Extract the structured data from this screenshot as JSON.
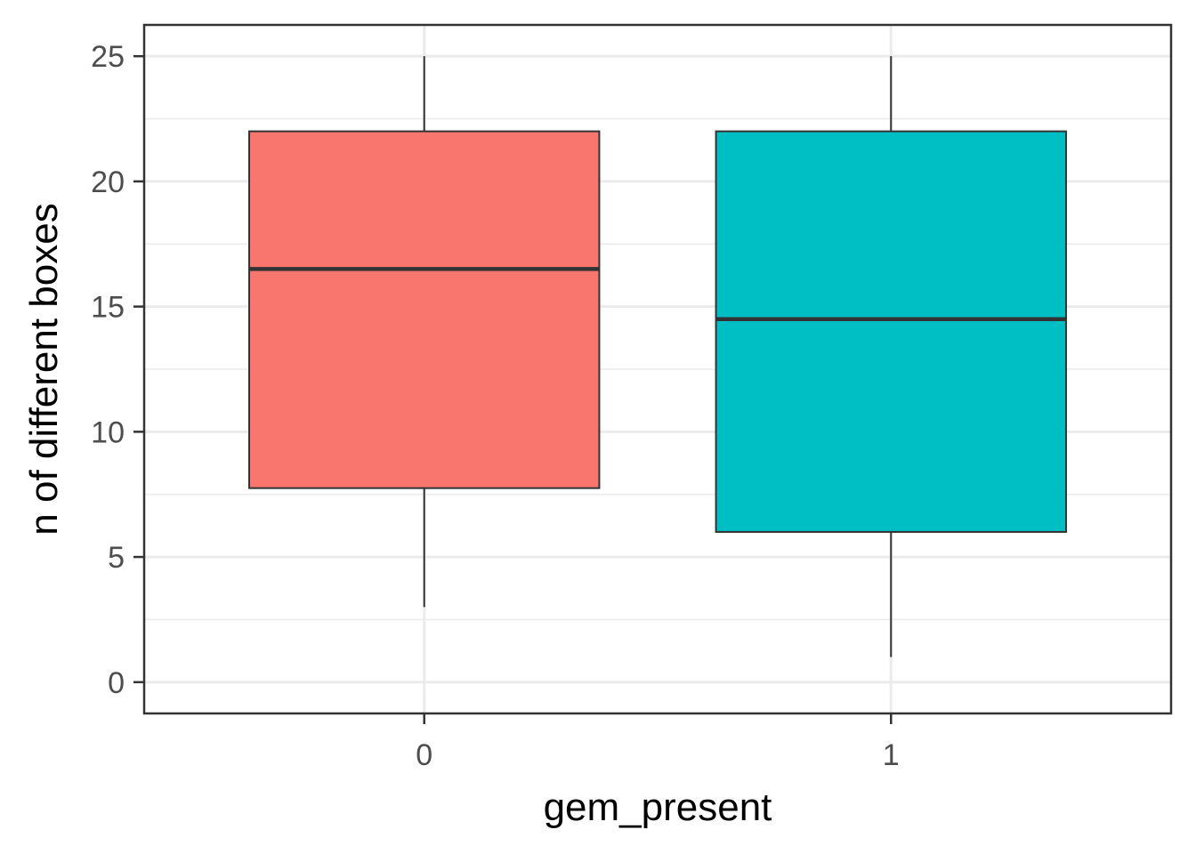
{
  "chart_data": {
    "type": "boxplot",
    "xlabel": "gem_present",
    "ylabel": "n of different boxes",
    "categories": [
      "0",
      "1"
    ],
    "ylim": [
      0,
      25
    ],
    "yticks": [
      0,
      5,
      10,
      15,
      20,
      25
    ],
    "grid": true,
    "legend": "none",
    "boxes": [
      {
        "category": "0",
        "min": 3,
        "q1": 7.75,
        "median": 16.5,
        "q3": 22,
        "max": 25,
        "color": "#F8766D"
      },
      {
        "category": "1",
        "min": 1,
        "q1": 6,
        "median": 14.5,
        "q3": 22,
        "max": 25,
        "color": "#00BFC4"
      }
    ]
  }
}
